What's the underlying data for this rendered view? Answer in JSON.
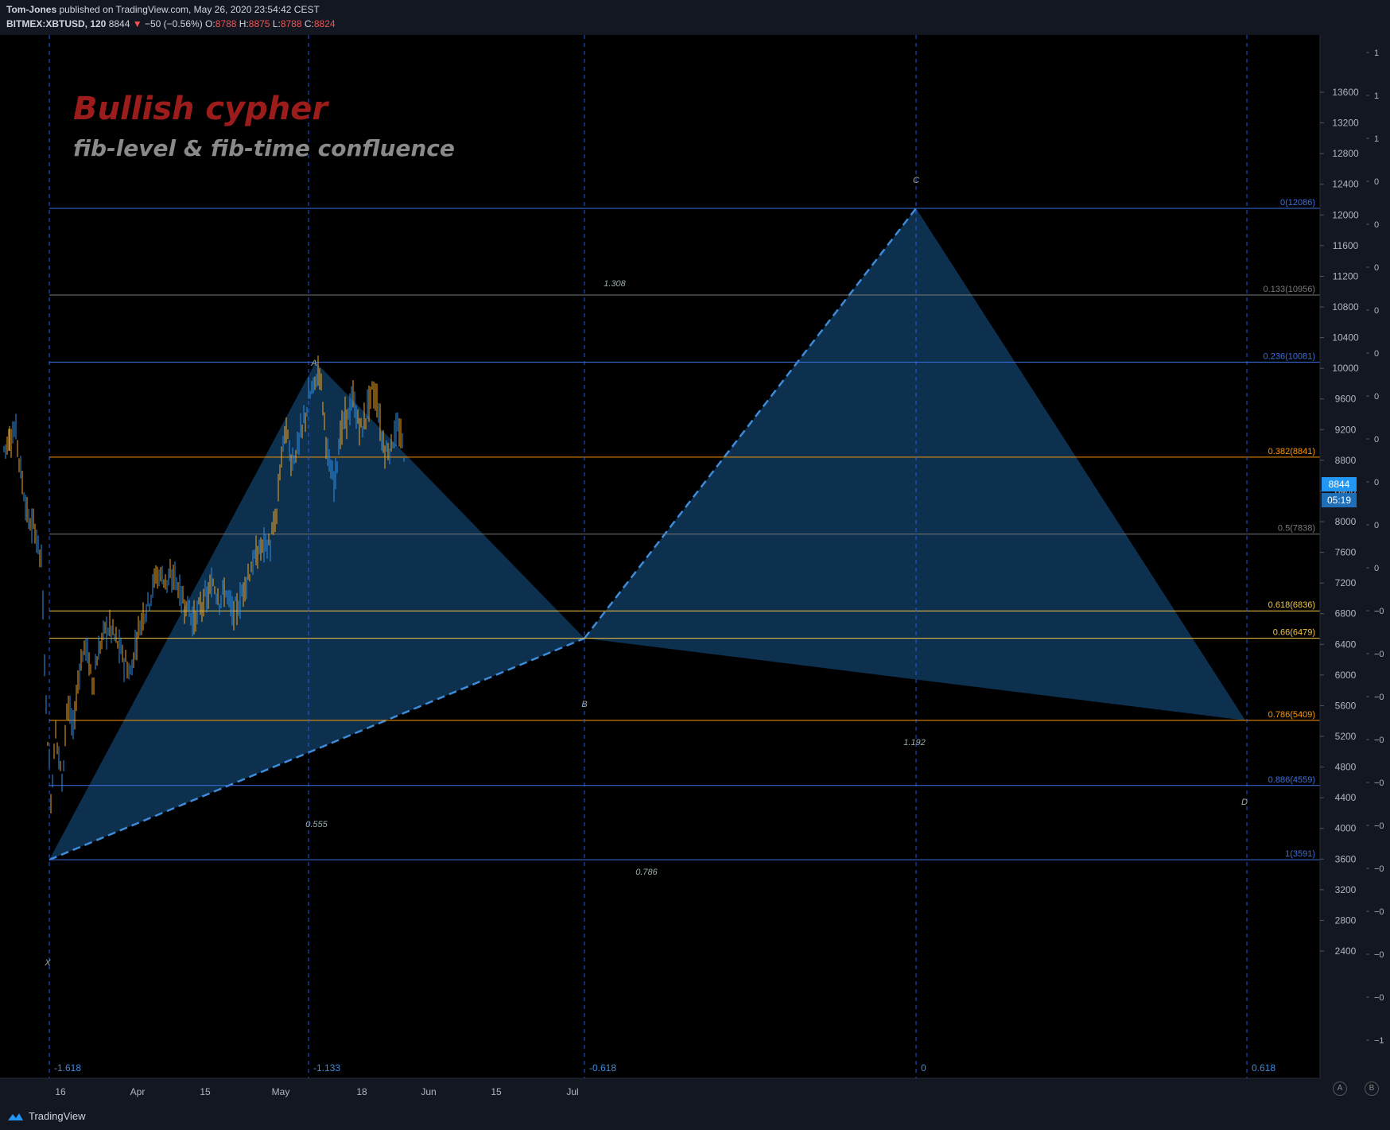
{
  "header": {
    "author": "Tom-Jones",
    "published_text": " published on TradingView.com, May 26, 2020 23:54:42 CEST",
    "symbol": "BITMEX:XBTUSD, 120",
    "last": "8844",
    "change": "−50 (−0.56%)",
    "o_label": "O:",
    "o": "8788",
    "h_label": "H:",
    "h": "8875",
    "l_label": "L:",
    "l": "8788",
    "c_label": "C:",
    "c": "8824"
  },
  "annotations": {
    "title": "Bullish cypher",
    "subtitle": "fib-level & fib-time confluence",
    "price_badge": "8844",
    "countdown_badge": "05:19"
  },
  "footer": {
    "logo_text": "TradingView",
    "btn_a": "A",
    "btn_b": "B"
  },
  "chart_data": {
    "type": "candlestick",
    "y_axis": {
      "ticks": [
        2400,
        2800,
        3200,
        3600,
        4000,
        4400,
        4800,
        5200,
        5600,
        6000,
        6400,
        6800,
        7200,
        7600,
        8000,
        8400,
        8800,
        9200,
        9600,
        10000,
        10400,
        10800,
        11200,
        11600,
        12000,
        12400,
        12800,
        13200,
        13600
      ],
      "ylim": [
        2200,
        13900
      ]
    },
    "x_axis": {
      "tick_labels": [
        "16",
        "Apr",
        "15",
        "May",
        "18",
        "Jun",
        "15",
        "Jul"
      ]
    },
    "fib_levels": [
      {
        "label": "0(12086)",
        "price": 12086,
        "color": "#3d6fe0"
      },
      {
        "label": "0.133(10956)",
        "price": 10956,
        "color": "#7a7a7a"
      },
      {
        "label": "0.236(10081)",
        "price": 10081,
        "color": "#3d6fe0"
      },
      {
        "label": "0.382(8841)",
        "price": 8841,
        "color": "#ff9800"
      },
      {
        "label": "0.5(7838)",
        "price": 7838,
        "color": "#7a7a7a"
      },
      {
        "label": "0.618(6836)",
        "price": 6836,
        "color": "#f5c542"
      },
      {
        "label": "0.66(6479)",
        "price": 6479,
        "color": "#f5c542"
      },
      {
        "label": "0.786(5409)",
        "price": 5409,
        "color": "#ff9800"
      },
      {
        "label": "0.886(4559)",
        "price": 4559,
        "color": "#3d6fe0"
      },
      {
        "label": "1(3591)",
        "price": 3591,
        "color": "#3d6fe0"
      }
    ],
    "fib_time_labels": [
      "-1.618",
      "-1.133",
      "-0.618",
      "0",
      "0.618"
    ],
    "pattern_points": [
      "X",
      "A",
      "B",
      "C",
      "D"
    ],
    "pattern_prices": {
      "X": 3591,
      "A": 10081,
      "B": 6479,
      "C": 12086,
      "D": 5409
    },
    "ratio_labels": [
      "1.308",
      "0.555",
      "0.786",
      "1.192"
    ],
    "right_scale_labels": [
      "1",
      "1",
      "1",
      "0",
      "0",
      "0",
      "0",
      "0",
      "0",
      "0",
      "0",
      "0",
      "0",
      "−0",
      "−0",
      "−0",
      "−0",
      "−0",
      "−0",
      "−0",
      "−0",
      "−0",
      "−0",
      "−1",
      "−1"
    ]
  }
}
